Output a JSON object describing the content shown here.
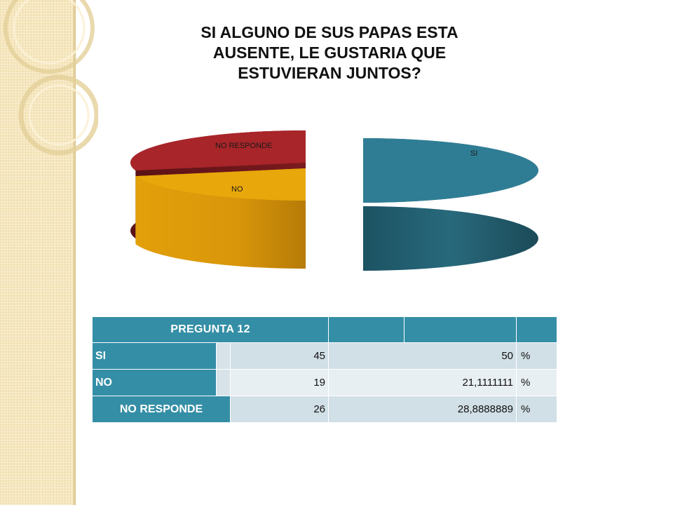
{
  "slide": {
    "title": "SI ALGUNO DE SUS PAPAS ESTA\nAUSENTE, LE GUSTARIA QUE\nESTUVIERAN JUNTOS?"
  },
  "chart_data": {
    "type": "pie",
    "title": "SI ALGUNO DE SUS PAPAS ESTA AUSENTE, LE GUSTARIA QUE ESTUVIERAN JUNTOS?",
    "categories": [
      "SI",
      "NO",
      "NO RESPONDE"
    ],
    "values": [
      45,
      19,
      26
    ],
    "colors": [
      "#2f7d95",
      "#e8a70a",
      "#a8252a"
    ],
    "style": "3d-exploded"
  },
  "table": {
    "header": "PREGUNTA 12",
    "rows": [
      {
        "label": "SI",
        "count": "45",
        "percent": "50",
        "unit": "%"
      },
      {
        "label": "NO",
        "count": "19",
        "percent": "21,1111111",
        "unit": "%"
      },
      {
        "label": "NO RESPONDE",
        "count": "26",
        "percent": "28,8888889",
        "unit": "%"
      }
    ]
  },
  "colors": {
    "table_header": "#348ea6",
    "side_panel": "#f6e7bd"
  }
}
